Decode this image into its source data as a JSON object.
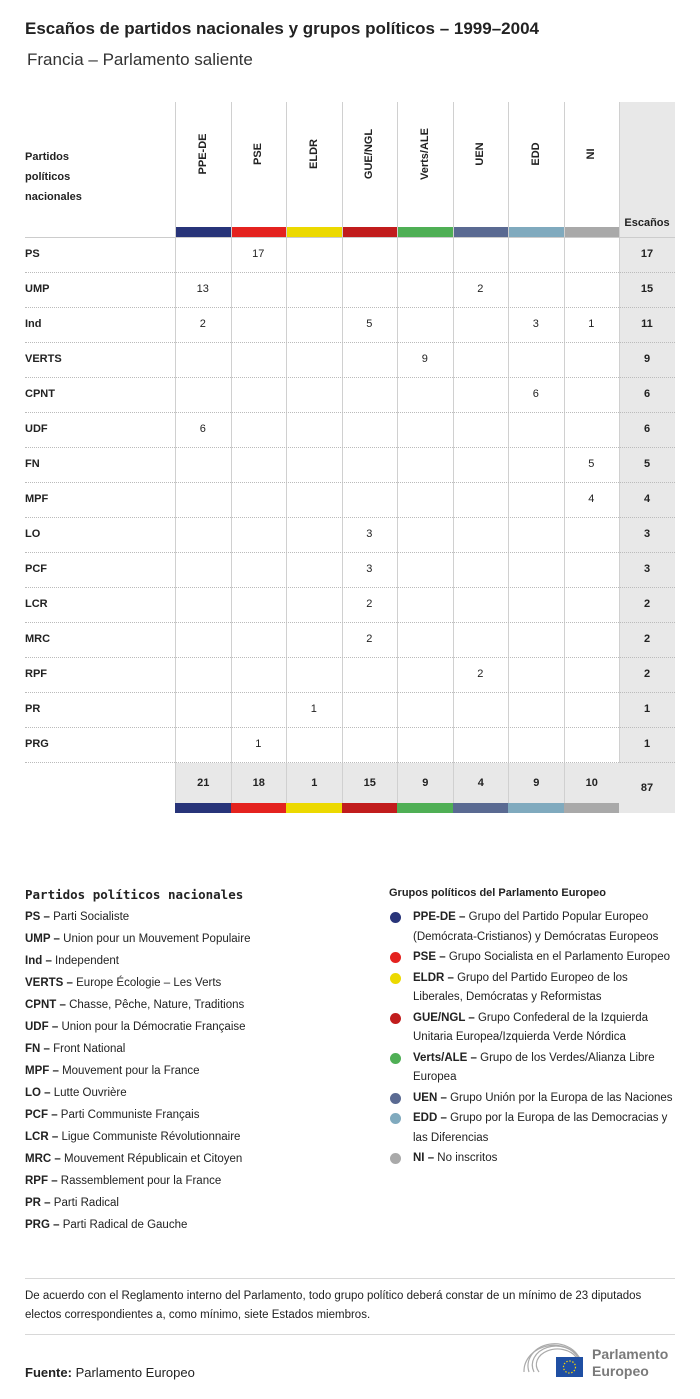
{
  "title": "Escaños de partidos nacionales y grupos políticos – 1999–2004",
  "subtitle": "Francia – Parlamento saliente",
  "chart_data": {
    "type": "table",
    "row_header": "Partidos políticos nacionales",
    "total_header": "Escaños",
    "groups": [
      {
        "name": "PPE-DE",
        "color": "#283479"
      },
      {
        "name": "PSE",
        "color": "#e4221f"
      },
      {
        "name": "ELDR",
        "color": "#ecd900"
      },
      {
        "name": "GUE/NGL",
        "color": "#c11c1c"
      },
      {
        "name": "Verts/ALE",
        "color": "#4faf55"
      },
      {
        "name": "UEN",
        "color": "#5a6a92"
      },
      {
        "name": "EDD",
        "color": "#80aabe"
      },
      {
        "name": "NI",
        "color": "#a9a9a9"
      }
    ],
    "rows": [
      {
        "party": "PS",
        "values": [
          "",
          "17",
          "",
          "",
          "",
          "",
          "",
          ""
        ],
        "total": "17"
      },
      {
        "party": "UMP",
        "values": [
          "13",
          "",
          "",
          "",
          "",
          "2",
          "",
          ""
        ],
        "total": "15"
      },
      {
        "party": "Ind",
        "values": [
          "2",
          "",
          "",
          "5",
          "",
          "",
          "3",
          "1"
        ],
        "total": "11"
      },
      {
        "party": "VERTS",
        "values": [
          "",
          "",
          "",
          "",
          "9",
          "",
          "",
          ""
        ],
        "total": "9"
      },
      {
        "party": "CPNT",
        "values": [
          "",
          "",
          "",
          "",
          "",
          "",
          "6",
          ""
        ],
        "total": "6"
      },
      {
        "party": "UDF",
        "values": [
          "6",
          "",
          "",
          "",
          "",
          "",
          "",
          ""
        ],
        "total": "6"
      },
      {
        "party": "FN",
        "values": [
          "",
          "",
          "",
          "",
          "",
          "",
          "",
          "5"
        ],
        "total": "5"
      },
      {
        "party": "MPF",
        "values": [
          "",
          "",
          "",
          "",
          "",
          "",
          "",
          "4"
        ],
        "total": "4"
      },
      {
        "party": "LO",
        "values": [
          "",
          "",
          "",
          "3",
          "",
          "",
          "",
          ""
        ],
        "total": "3"
      },
      {
        "party": "PCF",
        "values": [
          "",
          "",
          "",
          "3",
          "",
          "",
          "",
          ""
        ],
        "total": "3"
      },
      {
        "party": "LCR",
        "values": [
          "",
          "",
          "",
          "2",
          "",
          "",
          "",
          ""
        ],
        "total": "2"
      },
      {
        "party": "MRC",
        "values": [
          "",
          "",
          "",
          "2",
          "",
          "",
          "",
          ""
        ],
        "total": "2"
      },
      {
        "party": "RPF",
        "values": [
          "",
          "",
          "",
          "",
          "",
          "2",
          "",
          ""
        ],
        "total": "2"
      },
      {
        "party": "PR",
        "values": [
          "",
          "",
          "1",
          "",
          "",
          "",
          "",
          ""
        ],
        "total": "1"
      },
      {
        "party": "PRG",
        "values": [
          "",
          "1",
          "",
          "",
          "",
          "",
          "",
          ""
        ],
        "total": "1"
      }
    ],
    "group_totals": [
      "21",
      "18",
      "1",
      "15",
      "9",
      "4",
      "9",
      "10"
    ],
    "grand_total": "87"
  },
  "legend_parties": {
    "title": "Partidos políticos nacionales",
    "items": [
      {
        "abbr": "PS –",
        "name": "Parti Socialiste"
      },
      {
        "abbr": "UMP –",
        "name": "Union pour un Mouvement Populaire"
      },
      {
        "abbr": "Ind –",
        "name": "Independent"
      },
      {
        "abbr": "VERTS –",
        "name": "Europe Écologie – Les Verts"
      },
      {
        "abbr": "CPNT –",
        "name": "Chasse, Pêche, Nature, Traditions"
      },
      {
        "abbr": "UDF –",
        "name": "Union pour la Démocratie Française"
      },
      {
        "abbr": "FN –",
        "name": "Front National"
      },
      {
        "abbr": "MPF –",
        "name": "Mouvement pour la France"
      },
      {
        "abbr": "LO –",
        "name": "Lutte Ouvrière"
      },
      {
        "abbr": "PCF –",
        "name": "Parti Communiste Français"
      },
      {
        "abbr": "LCR –",
        "name": "Ligue Communiste Révolutionnaire"
      },
      {
        "abbr": "MRC –",
        "name": "Mouvement Républicain et Citoyen"
      },
      {
        "abbr": "RPF –",
        "name": "Rassemblement pour la France"
      },
      {
        "abbr": "PR –",
        "name": "Parti Radical"
      },
      {
        "abbr": "PRG –",
        "name": "Parti Radical de Gauche"
      }
    ]
  },
  "legend_groups": {
    "title": "Grupos políticos del Parlamento Europeo",
    "items": [
      {
        "abbr": "PPE-DE –",
        "name": "Grupo del Partido Popular Europeo (Demócrata-Cristianos) y Demócratas Europeos",
        "color": "#283479"
      },
      {
        "abbr": "PSE –",
        "name": "Grupo Socialista en el Parlamento Europeo",
        "color": "#e4221f"
      },
      {
        "abbr": "ELDR –",
        "name": "Grupo del Partido Europeo de los Liberales, Demócratas y Reformistas",
        "color": "#ecd900"
      },
      {
        "abbr": "GUE/NGL –",
        "name": "Grupo Confederal de la Izquierda Unitaria Europea/Izquierda Verde Nórdica",
        "color": "#c11c1c"
      },
      {
        "abbr": "Verts/ALE –",
        "name": "Grupo de los Verdes/Alianza Libre Europea",
        "color": "#4faf55"
      },
      {
        "abbr": "UEN –",
        "name": "Grupo Unión por la Europa de las Naciones",
        "color": "#5a6a92"
      },
      {
        "abbr": "EDD –",
        "name": "Grupo por la Europa de las Democracias y las Diferencias",
        "color": "#80aabe"
      },
      {
        "abbr": "NI –",
        "name": "No inscritos",
        "color": "#a9a9a9"
      }
    ]
  },
  "note": "De acuerdo con el Reglamento interno del Parlamento, todo grupo político deberá constar de un mínimo de 23 diputados electos correspondientes a, como mínimo, siete Estados miembros.",
  "source": {
    "label": "Fuente:",
    "value": "Parlamento Europeo"
  },
  "logo": {
    "line1": "Parlamento",
    "line2": "Europeo"
  }
}
